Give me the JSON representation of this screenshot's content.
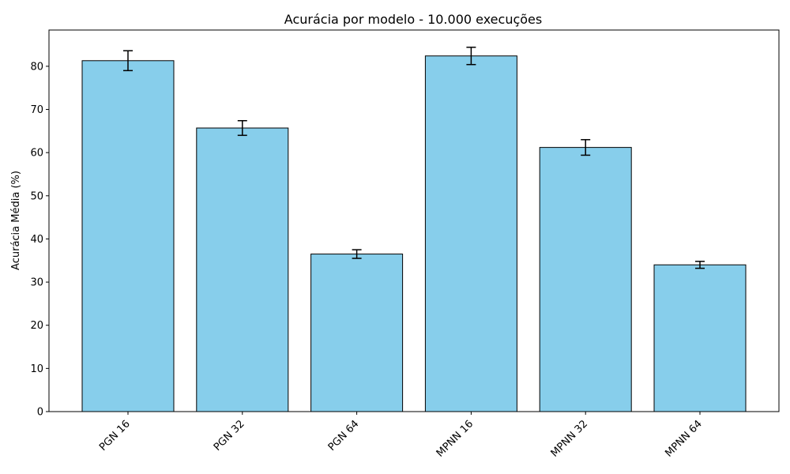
{
  "chart_data": {
    "type": "bar",
    "title": "Acurácia por modelo - 10.000 execuções",
    "xlabel": "",
    "ylabel": "Acurácia Média (%)",
    "categories": [
      "PGN 16",
      "PGN 32",
      "PGN 64",
      "MPNN 16",
      "MPNN 32",
      "MPNN 64"
    ],
    "values": [
      81.3,
      65.7,
      36.5,
      82.4,
      61.2,
      34.0
    ],
    "errors": [
      2.3,
      1.7,
      1.0,
      2.0,
      1.8,
      0.8
    ],
    "ylim": [
      0,
      88.4
    ],
    "yticks": [
      0,
      10,
      20,
      30,
      40,
      50,
      60,
      70,
      80
    ],
    "bar_color": "#87ceeb",
    "edge_color": "#000000",
    "grid": false,
    "legend": "none"
  }
}
